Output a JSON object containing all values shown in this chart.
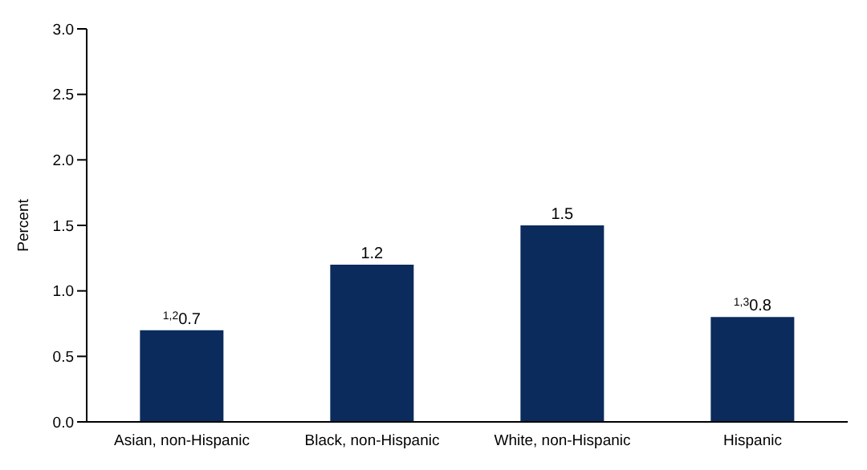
{
  "chart_data": {
    "type": "bar",
    "categories": [
      "Asian, non-Hispanic",
      "Black, non-Hispanic",
      "White, non-Hispanic",
      "Hispanic"
    ],
    "values": [
      0.7,
      1.2,
      1.5,
      0.8
    ],
    "value_labels": [
      "$^{1,2}$0.7",
      "1.2",
      "1.5",
      "$^{1,3}$0.8"
    ],
    "color": "#0b2b5c",
    "ylabel": "Percent",
    "ylim": [
      0,
      3
    ],
    "yticks": [
      {
        "value": 0,
        "label": "0.0"
      },
      {
        "value": 0.5,
        "label": "0.5"
      },
      {
        "value": 1,
        "label": "1.0"
      },
      {
        "value": 1.5,
        "label": "1.5"
      },
      {
        "value": 2,
        "label": "2.0"
      },
      {
        "value": 2.5,
        "label": "2.5"
      },
      {
        "value": 3,
        "label": "3.0"
      }
    ],
    "grid": false,
    "legend": false
  }
}
